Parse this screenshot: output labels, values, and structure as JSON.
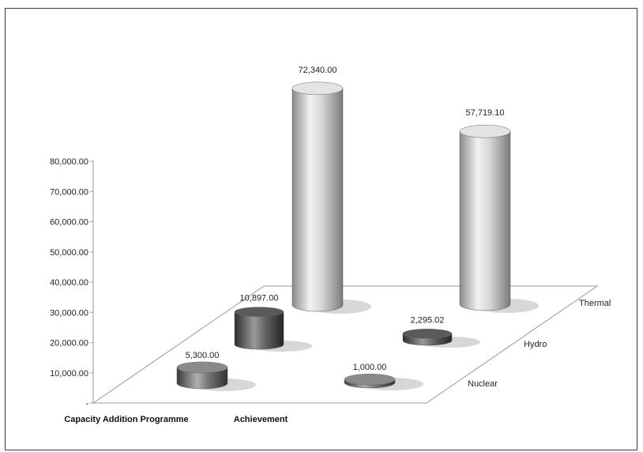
{
  "chart_data": {
    "type": "bar",
    "variant": "3d-cylinder",
    "title": "",
    "categories": [
      "Capacity Addition Programme",
      "Achievement"
    ],
    "series": [
      {
        "name": "Nuclear",
        "values": [
          5300.0,
          1000.0
        ],
        "labels": [
          "5,300.00",
          "1,000.00"
        ],
        "color": "#6e6e6e"
      },
      {
        "name": "Hydro",
        "values": [
          10897.0,
          2295.02
        ],
        "labels": [
          "10,897.00",
          "2,295.02"
        ],
        "color": "#595959"
      },
      {
        "name": "Thermal",
        "values": [
          72340.0,
          57719.1
        ],
        "labels": [
          "72,340.00",
          "57,719.10"
        ],
        "color": "#c6c6c6"
      }
    ],
    "y_ticks": [
      "-",
      "10,000.00",
      "20,000.00",
      "30,000.00",
      "40,000.00",
      "50,000.00",
      "60,000.00",
      "70,000.00",
      "80,000.00"
    ],
    "ylim": [
      0,
      80000
    ],
    "grid": false
  }
}
